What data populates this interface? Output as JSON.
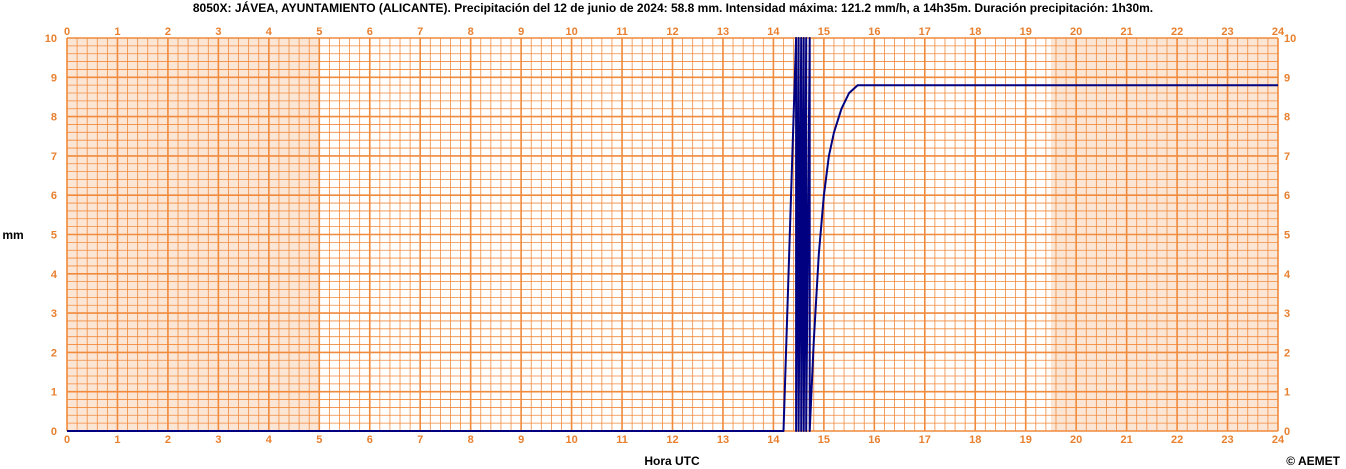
{
  "chart_data": {
    "type": "line",
    "title": "8050X: JÁVEA, AYUNTAMIENTO (ALICANTE). Precipitación del 12 de junio de 2024: 58.8 mm. Intensidad máxima: 121.2 mm/h, a 14h35m. Duración precipitación: 1h30m.",
    "xlabel": "Hora UTC",
    "ylabel": "mm",
    "credit": "© AEMET",
    "xlim": [
      0,
      24
    ],
    "ylim": [
      0,
      10
    ],
    "x_ticks": [
      "0",
      "1",
      "2",
      "3",
      "4",
      "5",
      "6",
      "7",
      "8",
      "9",
      "10",
      "11",
      "12",
      "13",
      "14",
      "15",
      "16",
      "17",
      "18",
      "19",
      "20",
      "21",
      "22",
      "23",
      "24"
    ],
    "y_ticks": [
      "0",
      "1",
      "2",
      "3",
      "4",
      "5",
      "6",
      "7",
      "8",
      "9",
      "10"
    ],
    "grid": true,
    "series": [
      {
        "color": "#000080",
        "x": [
          0,
          14.2,
          14.45,
          14.45,
          14.5,
          14.5,
          14.55,
          14.55,
          14.6,
          14.6,
          14.65,
          14.65,
          14.72,
          14.72,
          14.8,
          14.9,
          15.0,
          15.1,
          15.2,
          15.35,
          15.5,
          15.67,
          24
        ],
        "y": [
          0,
          0,
          10,
          0,
          10,
          0,
          10,
          0,
          10,
          0,
          10,
          0,
          10,
          0,
          2.3,
          4.5,
          6.0,
          7.0,
          7.6,
          8.2,
          8.6,
          8.8,
          8.8
        ]
      }
    ],
    "colors": {
      "grid": "#f08a3c",
      "band_fill": "#fbe6d6",
      "tick_text": "#e8802f",
      "line": "#000080"
    }
  }
}
